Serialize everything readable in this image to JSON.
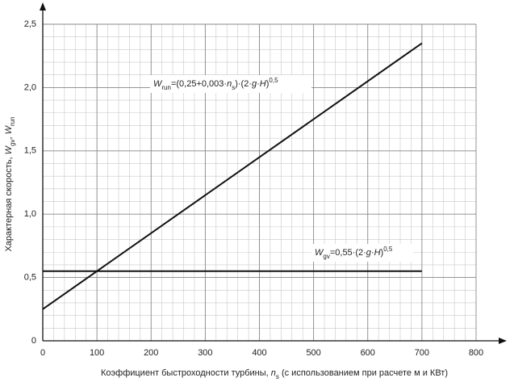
{
  "chart_data": {
    "type": "line",
    "ylabel": [
      "Характерная скорость, ",
      "W",
      "gv",
      ", ",
      "W",
      "run"
    ],
    "xlabel": [
      "Коэффициент быстроходности турбины, ",
      "n",
      "s",
      " (с использованием при расчете м и КВт)"
    ],
    "annotations": [
      [
        "W",
        "run",
        "=(0,25+0,003·",
        "n",
        "s",
        ")·(2·",
        "g",
        "·",
        "H",
        ")",
        "0,5"
      ],
      [
        "W",
        "gv",
        "=0,55·(2·",
        "g",
        "·",
        "H",
        ")",
        "0,5"
      ]
    ],
    "series": [
      {
        "color": "#111111",
        "x": [
          0,
          700
        ],
        "values": [
          0.25,
          2.35
        ]
      },
      {
        "color": "#111111",
        "x": [
          0,
          700
        ],
        "values": [
          0.55,
          0.55
        ]
      }
    ],
    "xlim": [
      0,
      800
    ],
    "xticks": [
      0,
      100,
      200,
      300,
      400,
      500,
      600,
      700,
      800
    ],
    "ylim": [
      0,
      2.5
    ],
    "yticks": [
      0,
      {
        "value": 0.5,
        "label": "0,5"
      },
      {
        "value": 1,
        "label": "1,0"
      },
      {
        "value": 1.5,
        "label": "1,5"
      },
      {
        "value": 2,
        "label": "2,0"
      },
      {
        "value": 2.5,
        "label": "2,5"
      }
    ],
    "grid": true,
    "minor_grid": {
      "x": 20,
      "y": 0.1
    }
  }
}
